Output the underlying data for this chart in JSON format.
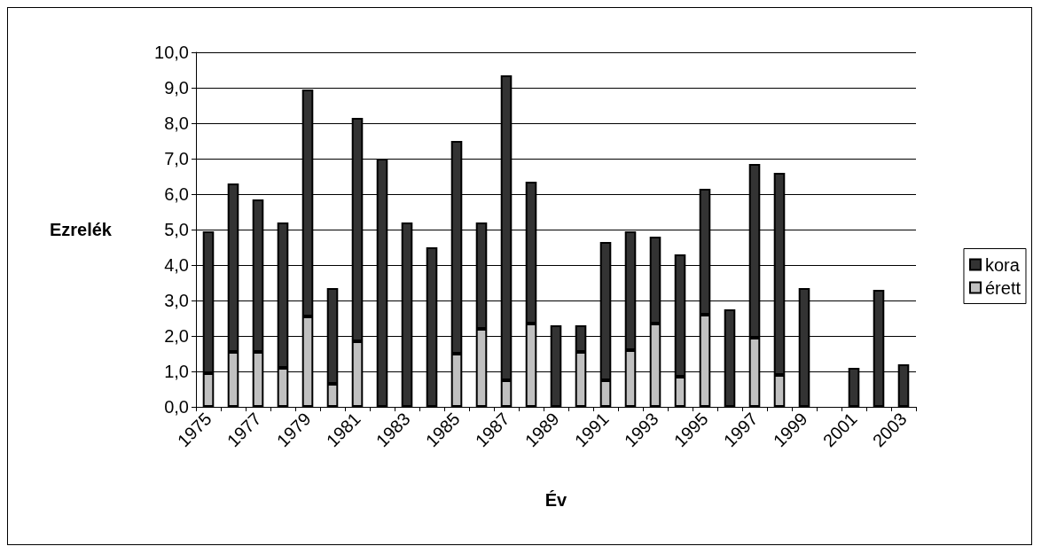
{
  "chart_data": {
    "type": "bar",
    "stacked": true,
    "xlabel": "Év",
    "ylabel": "Ezrelék",
    "categories": [
      "1975",
      null,
      "1977",
      null,
      "1979",
      null,
      "1981",
      null,
      "1983",
      null,
      "1985",
      null,
      "1987",
      null,
      "1989",
      null,
      "1991",
      null,
      "1993",
      null,
      "1995",
      null,
      "1997",
      null,
      "1999",
      null,
      "2001",
      null,
      "2003"
    ],
    "series": [
      {
        "name": "érett",
        "color": "#c0c0c0",
        "values": [
          0.95,
          1.55,
          1.55,
          1.1,
          2.55,
          0.65,
          1.85,
          null,
          null,
          null,
          1.5,
          2.2,
          0.75,
          2.35,
          null,
          1.55,
          0.75,
          1.6,
          2.35,
          0.85,
          2.6,
          null,
          1.95,
          0.9,
          null,
          null,
          null,
          null,
          null
        ]
      },
      {
        "name": "kora",
        "color": "#333333",
        "values": [
          4.0,
          4.75,
          4.3,
          4.1,
          6.4,
          2.7,
          6.3,
          7.0,
          5.2,
          4.5,
          6.0,
          3.0,
          8.6,
          4.0,
          2.3,
          0.75,
          3.9,
          3.35,
          2.45,
          3.45,
          3.55,
          2.75,
          4.9,
          5.7,
          3.35,
          null,
          1.1,
          3.3,
          1.2
        ]
      }
    ],
    "ylim": [
      0,
      10
    ],
    "yticks": [
      {
        "value": 0,
        "label": "0,0"
      },
      {
        "value": 1,
        "label": "1,0"
      },
      {
        "value": 2,
        "label": "2,0"
      },
      {
        "value": 3,
        "label": "3,0"
      },
      {
        "value": 4,
        "label": "4,0"
      },
      {
        "value": 5,
        "label": "5,0"
      },
      {
        "value": 6,
        "label": "6,0"
      },
      {
        "value": 7,
        "label": "7,0"
      },
      {
        "value": 8,
        "label": "8,0"
      },
      {
        "value": 9,
        "label": "9,0"
      },
      {
        "value": 10,
        "label": "10,0"
      }
    ],
    "grid": "y",
    "legend": "right"
  }
}
